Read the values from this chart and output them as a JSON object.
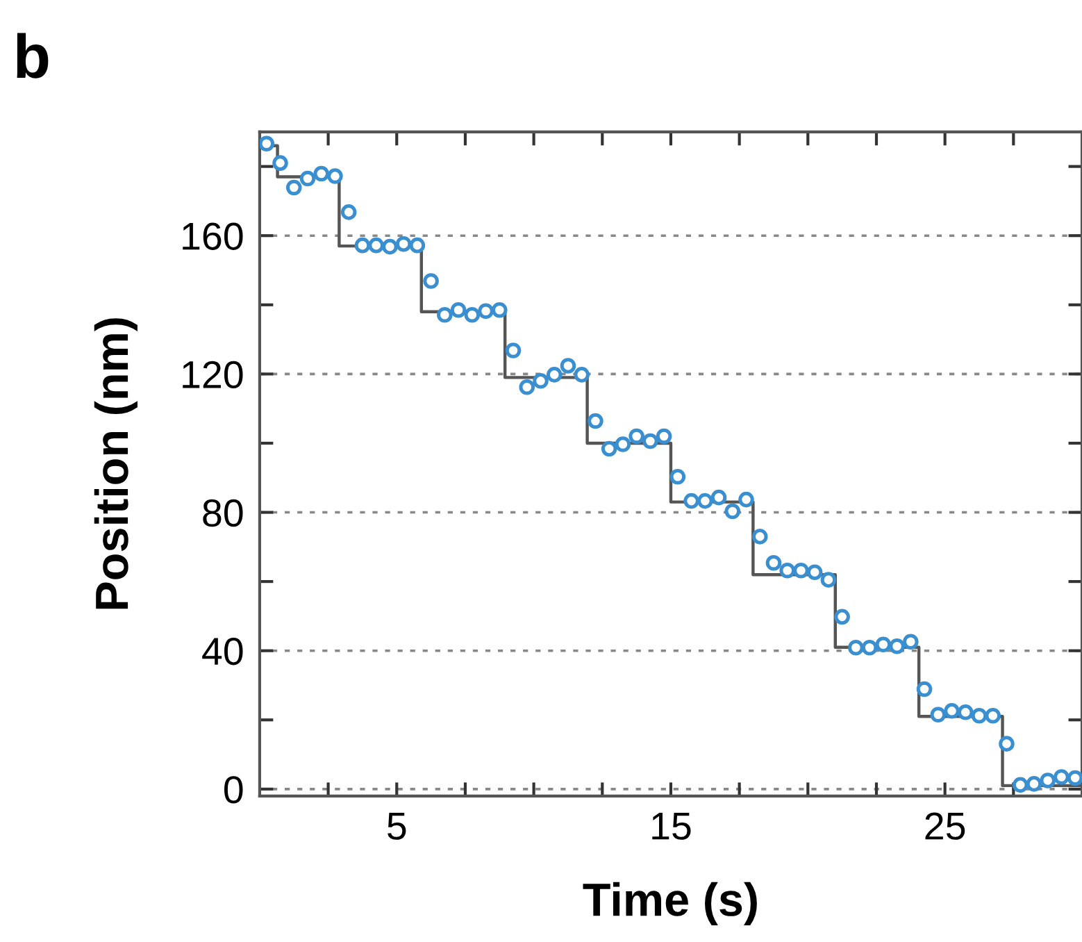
{
  "chart_data": {
    "type": "scatter",
    "title": "b",
    "xlabel": "Time (s)",
    "ylabel": "Position (nm)",
    "xlim": [
      0,
      30
    ],
    "ylim": [
      -2,
      190
    ],
    "xticks": [
      {
        "value": 2.5,
        "label": null
      },
      5,
      {
        "value": 7.5,
        "label": null
      },
      {
        "value": 10,
        "label": null
      },
      {
        "value": 12.5,
        "label": null
      },
      15,
      {
        "value": 17.5,
        "label": null
      },
      {
        "value": 20,
        "label": null
      },
      {
        "value": 22.5,
        "label": null
      },
      25,
      {
        "value": 27.5,
        "label": null
      }
    ],
    "yticks": [
      0,
      {
        "value": 20,
        "label": null
      },
      40,
      {
        "value": 60,
        "label": null
      },
      80,
      {
        "value": 100,
        "label": null
      },
      120,
      {
        "value": 140,
        "label": null
      },
      160,
      {
        "value": 180,
        "label": null
      }
    ],
    "grid": "y",
    "series": [
      {
        "type": "step",
        "color": "#555555",
        "line_style": "solid",
        "marker": "none",
        "x": [
          0,
          0.65,
          2.9,
          5.9,
          8.95,
          11.95,
          15.0,
          18.0,
          21.0,
          24.05,
          27.1,
          30
        ],
        "values": [
          186,
          177,
          157,
          138,
          119,
          100,
          83,
          62,
          41,
          21,
          1,
          1
        ]
      },
      {
        "color": "#3a8fd0",
        "marker": "circle",
        "x": [
          0.25,
          0.75,
          1.25,
          1.75,
          2.25,
          2.75,
          3.25,
          3.75,
          4.25,
          4.75,
          5.25,
          5.75,
          6.25,
          6.75,
          7.25,
          7.75,
          8.25,
          8.75,
          9.25,
          9.75,
          10.25,
          10.75,
          11.25,
          11.75,
          12.25,
          12.75,
          13.25,
          13.75,
          14.25,
          14.75,
          15.25,
          15.75,
          16.25,
          16.75,
          17.25,
          17.75,
          18.25,
          18.75,
          19.25,
          19.75,
          20.25,
          20.75,
          21.25,
          21.75,
          22.25,
          22.75,
          23.25,
          23.75,
          24.25,
          24.75,
          25.25,
          25.75,
          26.25,
          26.75,
          27.25,
          27.75,
          28.25,
          28.75,
          29.25,
          29.75
        ],
        "values": [
          186.6,
          181,
          173.9,
          176.5,
          177.9,
          177.2,
          166.8,
          157.2,
          157.2,
          156.8,
          157.6,
          157.2,
          146.9,
          137.1,
          138.5,
          137.1,
          138.2,
          138.5,
          126.8,
          116.2,
          118,
          119.8,
          122.4,
          119.8,
          106.4,
          98.4,
          99.7,
          102,
          100.6,
          102,
          90.3,
          83.3,
          83.3,
          84.3,
          80.3,
          83.7,
          73,
          65.4,
          63.2,
          63.2,
          62.7,
          60.5,
          49.8,
          40.9,
          40.9,
          41.8,
          41.3,
          42.6,
          28.9,
          21.5,
          22.6,
          22.2,
          21.2,
          21.2,
          13.1,
          1.2,
          1.5,
          2.5,
          3.5,
          3.2
        ]
      }
    ]
  }
}
